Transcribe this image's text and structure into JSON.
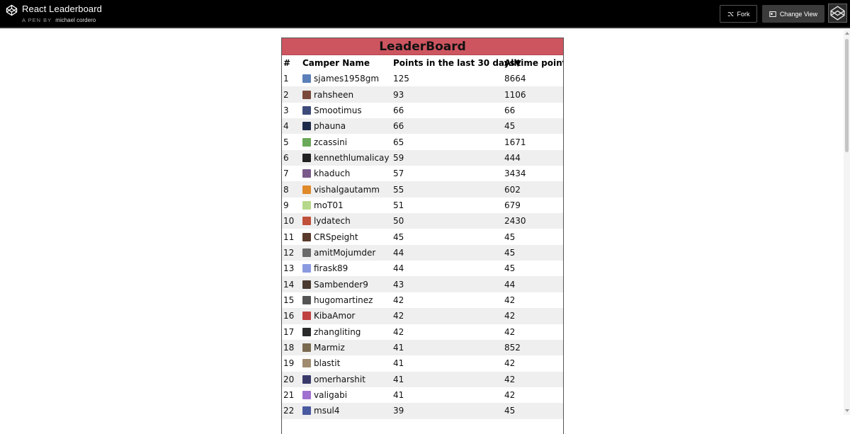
{
  "header": {
    "title": "React Leaderboard",
    "author_prefix": "A PEN BY",
    "author": "michael cordero",
    "fork_label": "Fork",
    "change_view_label": "Change View"
  },
  "leaderboard": {
    "title": "LeaderBoard",
    "columns": {
      "rank": "#",
      "name": "Camper Name",
      "recent": "Points in the last 30 days▼",
      "alltime": "Alltime points"
    },
    "rows": [
      {
        "rank": "1",
        "name": "sjames1958gm",
        "recent": "125",
        "alltime": "8664",
        "avatar_color": "#5b7fb8"
      },
      {
        "rank": "2",
        "name": "rahsheen",
        "recent": "93",
        "alltime": "1106",
        "avatar_color": "#7a4a3a"
      },
      {
        "rank": "3",
        "name": "Smootimus",
        "recent": "66",
        "alltime": "66",
        "avatar_color": "#3d4a7a"
      },
      {
        "rank": "4",
        "name": "phauna",
        "recent": "66",
        "alltime": "45",
        "avatar_color": "#1e2a4a"
      },
      {
        "rank": "5",
        "name": "zcassini",
        "recent": "65",
        "alltime": "1671",
        "avatar_color": "#6aa85a"
      },
      {
        "rank": "6",
        "name": "kennethlumalicay",
        "recent": "59",
        "alltime": "444",
        "avatar_color": "#222222"
      },
      {
        "rank": "7",
        "name": "khaduch",
        "recent": "57",
        "alltime": "3434",
        "avatar_color": "#7a5a8a"
      },
      {
        "rank": "8",
        "name": "vishalgautamm",
        "recent": "55",
        "alltime": "602",
        "avatar_color": "#e08a2a"
      },
      {
        "rank": "9",
        "name": "moT01",
        "recent": "51",
        "alltime": "679",
        "avatar_color": "#b6d88a"
      },
      {
        "rank": "10",
        "name": "lydatech",
        "recent": "50",
        "alltime": "2430",
        "avatar_color": "#c0503a"
      },
      {
        "rank": "11",
        "name": "CRSpeight",
        "recent": "45",
        "alltime": "45",
        "avatar_color": "#5a3a2a"
      },
      {
        "rank": "12",
        "name": "amitMojumder",
        "recent": "44",
        "alltime": "45",
        "avatar_color": "#6a6a6a"
      },
      {
        "rank": "13",
        "name": "firask89",
        "recent": "44",
        "alltime": "45",
        "avatar_color": "#8a9ae0"
      },
      {
        "rank": "14",
        "name": "Sambender9",
        "recent": "43",
        "alltime": "44",
        "avatar_color": "#4a3a30"
      },
      {
        "rank": "15",
        "name": "hugomartinez",
        "recent": "42",
        "alltime": "42",
        "avatar_color": "#555555"
      },
      {
        "rank": "16",
        "name": "KibaAmor",
        "recent": "42",
        "alltime": "42",
        "avatar_color": "#c04040"
      },
      {
        "rank": "17",
        "name": "zhangliting",
        "recent": "42",
        "alltime": "42",
        "avatar_color": "#2a2a2a"
      },
      {
        "rank": "18",
        "name": "Marmiz",
        "recent": "41",
        "alltime": "852",
        "avatar_color": "#7a6a50"
      },
      {
        "rank": "19",
        "name": "blastit",
        "recent": "41",
        "alltime": "42",
        "avatar_color": "#a08a70"
      },
      {
        "rank": "20",
        "name": "omerharshit",
        "recent": "41",
        "alltime": "42",
        "avatar_color": "#3a3a6a"
      },
      {
        "rank": "21",
        "name": "valigabi",
        "recent": "41",
        "alltime": "42",
        "avatar_color": "#a070d0"
      },
      {
        "rank": "22",
        "name": "msul4",
        "recent": "39",
        "alltime": "45",
        "avatar_color": "#4a5aa0"
      }
    ]
  }
}
